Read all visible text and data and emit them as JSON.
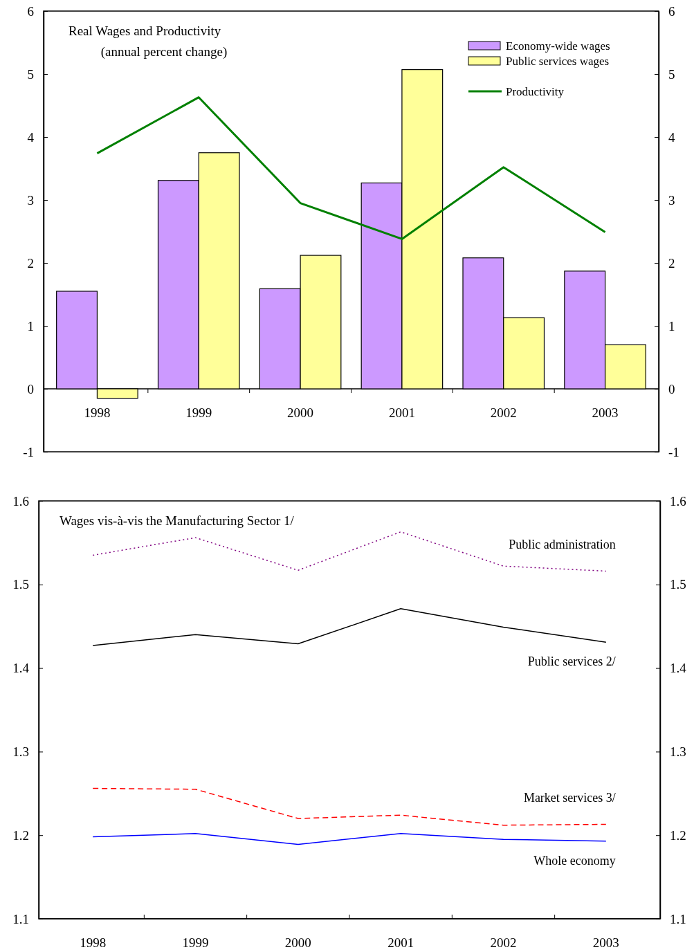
{
  "chart_data": [
    {
      "type": "bar",
      "title": "Real Wages and Productivity",
      "subtitle": "(annual percent change)",
      "categories": [
        "1998",
        "1999",
        "2000",
        "2001",
        "2002",
        "2003"
      ],
      "series": [
        {
          "name": "Economy-wide wages",
          "color": "#cc99ff",
          "values": [
            1.55,
            3.31,
            1.59,
            3.27,
            2.08,
            1.87
          ]
        },
        {
          "name": "Public services wages",
          "color": "#ffff99",
          "values": [
            -0.15,
            3.75,
            2.12,
            5.07,
            1.13,
            0.7
          ]
        },
        {
          "name": "Productivity",
          "type": "line",
          "color": "#008000",
          "line_style": "solid",
          "values": [
            3.74,
            4.63,
            2.95,
            2.38,
            3.52,
            2.49
          ]
        }
      ],
      "ylim": [
        -1,
        6
      ],
      "yticks": [
        -1,
        0,
        1,
        2,
        3,
        4,
        5,
        6
      ],
      "y2lim": [
        -1,
        6
      ],
      "y2ticks": [
        -1,
        0,
        1,
        2,
        3,
        4,
        5,
        6
      ],
      "legend": "top right",
      "grid": false,
      "marker": "none"
    },
    {
      "type": "line",
      "title": "Wages vis-à-vis the Manufacturing Sector 1/",
      "categories": [
        "1998",
        "1999",
        "2000",
        "2001",
        "2002",
        "2003"
      ],
      "series": [
        {
          "name": "Public administration",
          "color": "#800080",
          "line_style": "dotted",
          "values": [
            1.535,
            1.556,
            1.517,
            1.563,
            1.522,
            1.516
          ]
        },
        {
          "name": "Public services 2/",
          "color": "#000000",
          "line_style": "solid",
          "values": [
            1.427,
            1.44,
            1.429,
            1.471,
            1.449,
            1.431
          ]
        },
        {
          "name": "Market services 3/",
          "color": "#ff0000",
          "line_style": "dashed",
          "values": [
            1.256,
            1.255,
            1.22,
            1.224,
            1.212,
            1.213
          ]
        },
        {
          "name": "Whole economy",
          "color": "#0000ff",
          "line_style": "solid",
          "values": [
            1.198,
            1.202,
            1.189,
            1.202,
            1.195,
            1.193
          ]
        }
      ],
      "ylim": [
        1.1,
        1.6
      ],
      "yticks": [
        {
          "value": 1.1,
          "label": "1.1"
        },
        {
          "value": 1.2,
          "label": "1.2"
        },
        {
          "value": 1.3,
          "label": "1.3"
        },
        {
          "value": 1.4,
          "label": "1.4"
        },
        {
          "value": 1.5,
          "label": "1.5"
        },
        {
          "value": 1.6,
          "label": "1.6"
        }
      ],
      "y2lim": [
        1.1,
        1.6
      ],
      "y2ticks": [
        {
          "value": 1.1,
          "label": "1.1"
        },
        {
          "value": 1.2,
          "label": "1.2"
        },
        {
          "value": 1.3,
          "label": "1.3"
        },
        {
          "value": 1.4,
          "label": "1.4"
        },
        {
          "value": 1.5,
          "label": "1.5"
        },
        {
          "value": 1.6,
          "label": "1.6"
        }
      ],
      "legend": false,
      "grid": false,
      "marker": "none"
    }
  ]
}
